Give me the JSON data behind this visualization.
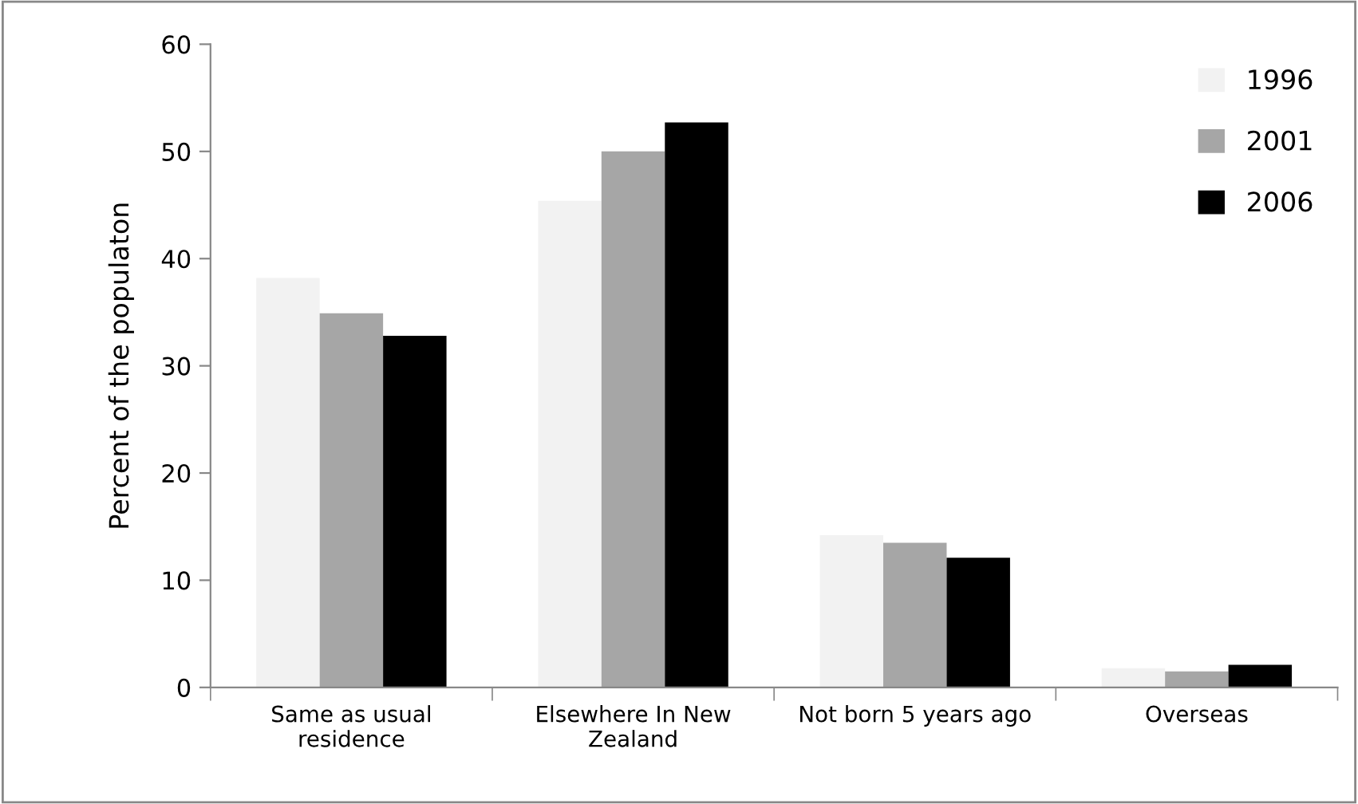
{
  "chart_data": {
    "type": "bar",
    "ylabel": "Percent of the populaton",
    "categories": [
      "Same as usual residence",
      "Elsewhere In New Zealand",
      "Not born 5 years ago",
      "Overseas"
    ],
    "series": [
      {
        "name": "1996",
        "color": "#f2f2f2",
        "values": [
          38.2,
          45.4,
          14.2,
          1.8
        ]
      },
      {
        "name": "2001",
        "color": "#a6a6a6",
        "values": [
          34.9,
          50.0,
          13.5,
          1.5
        ]
      },
      {
        "name": "2006",
        "color": "#000000",
        "values": [
          32.8,
          52.7,
          12.1,
          2.1
        ]
      }
    ],
    "ylim": [
      0,
      60
    ],
    "yticks": [
      0,
      10,
      20,
      30,
      40,
      50,
      60
    ],
    "grid": false,
    "legend": "top right"
  }
}
